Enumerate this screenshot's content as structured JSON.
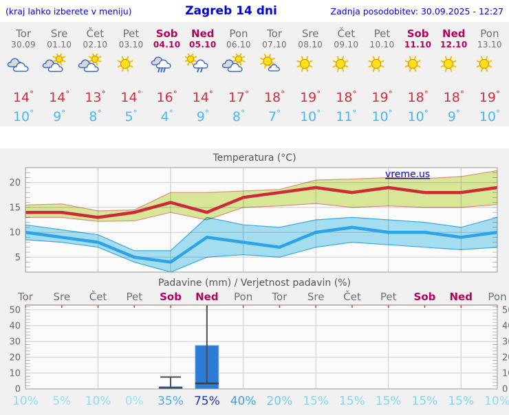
{
  "header": {
    "left_link": "(kraj lahko izberete v meniju)",
    "title": "Zagreb 14 dni",
    "updated": "Zadnja posodobitev: 30.09.2025 - 12:27"
  },
  "units": {
    "degree": "°"
  },
  "colors": {
    "link": "#0000d8",
    "weekday": "#6f6f6f",
    "weekend": "#b40257",
    "temp_max": "#d22f38",
    "temp_min": "#46b7f3",
    "panel_bg": "#f1f1f1",
    "plot_bg": "#fbfbfb",
    "grid": "#cccccc",
    "frame": "#999999",
    "bar": "#2c7cd6",
    "bar_edge": "#7fb6ee",
    "whisker": "#4d4d4d",
    "precip_topline": "#f09898",
    "precip_toptick": "#c83a4a",
    "sun_fill": "#ffe11a",
    "sun_edge": "#d29a00",
    "sun_ray": "#f5c400",
    "icon_outline": "#3c6cc8",
    "cloud_gray": "#d9d9d9",
    "cloud_white": "#ffffff"
  },
  "days": [
    {
      "name": "Tor",
      "date": "30.09",
      "weekend": false,
      "icon": "cloudy",
      "max": 14,
      "min": 10,
      "precip_prob": "10%",
      "prob_color": "#8ddcf6"
    },
    {
      "name": "Sre",
      "date": "01.10",
      "weekend": false,
      "icon": "partly-cloudy",
      "max": 14,
      "min": 9,
      "precip_prob": "5%",
      "prob_color": "#97e0f7"
    },
    {
      "name": "Čet",
      "date": "02.10",
      "weekend": false,
      "icon": "partly-cloudy",
      "max": 13,
      "min": 8,
      "precip_prob": "10%",
      "prob_color": "#8ddcf6"
    },
    {
      "name": "Pet",
      "date": "03.10",
      "weekend": false,
      "icon": "sunny",
      "max": 14,
      "min": 5,
      "precip_prob": "0%",
      "prob_color": "#9ce2f8"
    },
    {
      "name": "Sob",
      "date": "04.10",
      "weekend": true,
      "icon": "rain",
      "max": 16,
      "min": 4,
      "precip_prob": "35%",
      "prob_color": "#4da9ec"
    },
    {
      "name": "Ned",
      "date": "05.10",
      "weekend": true,
      "icon": "sun-rain",
      "max": 14,
      "min": 9,
      "precip_prob": "75%",
      "prob_color": "#2133c4"
    },
    {
      "name": "Pon",
      "date": "06.10",
      "weekend": false,
      "icon": "partly-cloudy",
      "max": 17,
      "min": 8,
      "precip_prob": "40%",
      "prob_color": "#3aa0e9"
    },
    {
      "name": "Tor",
      "date": "07.10",
      "weekend": false,
      "icon": "mostly-sunny",
      "max": 18,
      "min": 7,
      "precip_prob": "20%",
      "prob_color": "#6fccf2"
    },
    {
      "name": "Sre",
      "date": "08.10",
      "weekend": false,
      "icon": "sunny",
      "max": 19,
      "min": 10,
      "precip_prob": "15%",
      "prob_color": "#81d6f4"
    },
    {
      "name": "Čet",
      "date": "09.10",
      "weekend": false,
      "icon": "sunny",
      "max": 18,
      "min": 11,
      "precip_prob": "15%",
      "prob_color": "#81d6f4"
    },
    {
      "name": "Pet",
      "date": "10.10",
      "weekend": false,
      "icon": "sunny",
      "max": 19,
      "min": 10,
      "precip_prob": "15%",
      "prob_color": "#81d6f4"
    },
    {
      "name": "Sob",
      "date": "11.10",
      "weekend": true,
      "icon": "sunny",
      "max": 18,
      "min": 10,
      "precip_prob": "15%",
      "prob_color": "#81d6f4"
    },
    {
      "name": "Ned",
      "date": "12.10",
      "weekend": true,
      "icon": "sunny",
      "max": 18,
      "min": 9,
      "precip_prob": "15%",
      "prob_color": "#81d6f4"
    },
    {
      "name": "Pon",
      "date": "13.10",
      "weekend": false,
      "icon": "sunny",
      "max": 19,
      "min": 10,
      "precip_prob": "10%",
      "prob_color": "#8ddcf6"
    }
  ],
  "chart_data": [
    {
      "type": "line",
      "title": "Temperatura (°C)",
      "watermark": "vreme.us",
      "x_labels": [
        "Tor",
        "Sre",
        "Čet",
        "Pet",
        "Sob",
        "Ned",
        "Pon",
        "Tor",
        "Sre",
        "Čet",
        "Pet",
        "Sob",
        "Ned",
        "Pon"
      ],
      "ylim": [
        2,
        23
      ],
      "yticks": [
        5,
        10,
        15,
        20
      ],
      "grid_x_indices": [
        2,
        4,
        6,
        8,
        10,
        12
      ],
      "series": [
        {
          "name": "max-temperature",
          "values": [
            14,
            14,
            13,
            14,
            16,
            14,
            17,
            18,
            19,
            18,
            19,
            18,
            18,
            19
          ],
          "band_upper": [
            15.5,
            15.7,
            14.3,
            14.5,
            18,
            18,
            18.3,
            18.6,
            20.5,
            20.7,
            21,
            20.8,
            21.2,
            22.4
          ],
          "band_lower": [
            13,
            13,
            12.2,
            12.3,
            14,
            12.5,
            15,
            15.3,
            15.8,
            15,
            15.3,
            15,
            15,
            15.6
          ],
          "color": "#cb2a38",
          "band_fill": "#dcea9b",
          "band_edge": "#e0907e"
        },
        {
          "name": "min-temperature",
          "values": [
            10,
            9,
            8,
            5,
            4,
            9,
            8,
            7,
            10,
            11,
            10,
            10,
            9,
            10
          ],
          "band_upper": [
            11.5,
            10.5,
            9.5,
            6.3,
            6.3,
            13,
            11.5,
            11,
            12.5,
            13,
            12.5,
            12,
            11,
            13
          ],
          "band_lower": [
            8.5,
            8,
            7,
            4,
            2,
            5,
            5.5,
            5,
            7,
            8,
            7.5,
            7,
            6.5,
            7
          ],
          "color": "#2da2e6",
          "band_fill": "#a8e1f4",
          "band_edge": "#38ace4"
        }
      ]
    },
    {
      "type": "bar",
      "title": "Padavine (mm) / Verjetnost padavin (%)",
      "categories": [
        "Tor",
        "Sre",
        "Čet",
        "Pet",
        "Sob",
        "Ned",
        "Pon",
        "Tor",
        "Sre",
        "Čet",
        "Pet",
        "Sob",
        "Ned",
        "Pon"
      ],
      "values": [
        0,
        0,
        0,
        0,
        1.5,
        27.5,
        0,
        0,
        0,
        0,
        0,
        0,
        0,
        0
      ],
      "median": [
        null,
        null,
        null,
        null,
        0.5,
        3.5,
        null,
        null,
        null,
        null,
        null,
        null,
        null,
        null
      ],
      "whisker_top": [
        null,
        null,
        null,
        null,
        7.5,
        56,
        null,
        null,
        null,
        null,
        null,
        null,
        null,
        null
      ],
      "probabilities": [
        "10%",
        "5%",
        "10%",
        "0%",
        "35%",
        "75%",
        "40%",
        "20%",
        "15%",
        "15%",
        "15%",
        "15%",
        "15%",
        "10%"
      ],
      "ylim": [
        0,
        53
      ],
      "yticks": [
        0,
        10,
        20,
        30,
        40,
        50
      ]
    }
  ]
}
